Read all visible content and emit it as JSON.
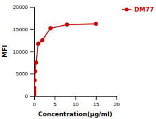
{
  "chart_data": {
    "type": "line",
    "x": [
      0.001,
      0.004,
      0.008,
      0.016,
      0.031,
      0.063,
      0.125,
      0.25,
      0.5,
      1.0,
      2.0,
      4.0,
      8.0,
      15.0
    ],
    "series": [
      {
        "name": "DM77",
        "color": "#cc0000",
        "marker": "circle",
        "values": [
          100,
          180,
          350,
          700,
          1100,
          1800,
          3500,
          5500,
          7500,
          11700,
          12500,
          15200,
          16000,
          16200
        ]
      }
    ],
    "xlabel": "Concentration(μg/ml)",
    "ylabel": "MFI",
    "xlim": [
      0,
      20
    ],
    "ylim": [
      0,
      20000
    ],
    "xticks": [
      0,
      5,
      10,
      15,
      20
    ],
    "yticks": [
      0,
      5000,
      10000,
      15000,
      20000
    ],
    "legend": "top-right"
  }
}
